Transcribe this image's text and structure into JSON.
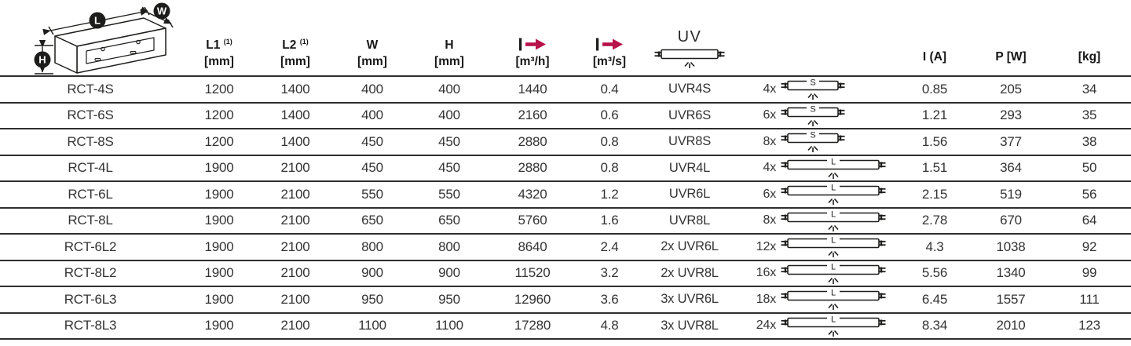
{
  "colors": {
    "accent_red": "#b8124a",
    "line": "#2e2e2e",
    "text": "#1d1d1b"
  },
  "header": {
    "diagram_labels": {
      "l": "L",
      "w": "W",
      "h": "H"
    },
    "columns": {
      "l1": {
        "name": "L1",
        "sup": "(1)",
        "unit": "[mm]"
      },
      "l2": {
        "name": "L2",
        "sup": "(1)",
        "unit": "[mm]"
      },
      "w": {
        "name": "W",
        "unit": "[mm]"
      },
      "h": {
        "name": "H",
        "unit": "[mm]"
      },
      "flow_h": {
        "unit": "[m³/h]"
      },
      "flow_s": {
        "unit": "[m³/s]"
      },
      "uv": {
        "name": "UV"
      },
      "current": {
        "name": "I (A]"
      },
      "power": {
        "name": "P [W]"
      },
      "weight": {
        "name": "[kg]"
      }
    }
  },
  "table": {
    "rows": [
      {
        "model": "RCT-4S",
        "l1": "1200",
        "l2": "1400",
        "w": "400",
        "h": "400",
        "m3h": "1440",
        "m3s": "0.4",
        "uv_model": "UVR4S",
        "lamp_count": "4x",
        "lamp_type": "S",
        "i": "0.85",
        "p": "205",
        "kg": "34"
      },
      {
        "model": "RCT-6S",
        "l1": "1200",
        "l2": "1400",
        "w": "400",
        "h": "400",
        "m3h": "2160",
        "m3s": "0.6",
        "uv_model": "UVR6S",
        "lamp_count": "6x",
        "lamp_type": "S",
        "i": "1.21",
        "p": "293",
        "kg": "35"
      },
      {
        "model": "RCT-8S",
        "l1": "1200",
        "l2": "1400",
        "w": "450",
        "h": "450",
        "m3h": "2880",
        "m3s": "0.8",
        "uv_model": "UVR8S",
        "lamp_count": "8x",
        "lamp_type": "S",
        "i": "1.56",
        "p": "377",
        "kg": "38"
      },
      {
        "model": "RCT-4L",
        "l1": "1900",
        "l2": "2100",
        "w": "450",
        "h": "450",
        "m3h": "2880",
        "m3s": "0.8",
        "uv_model": "UVR4L",
        "lamp_count": "4x",
        "lamp_type": "L",
        "i": "1.51",
        "p": "364",
        "kg": "50"
      },
      {
        "model": "RCT-6L",
        "l1": "1900",
        "l2": "2100",
        "w": "550",
        "h": "550",
        "m3h": "4320",
        "m3s": "1.2",
        "uv_model": "UVR6L",
        "lamp_count": "6x",
        "lamp_type": "L",
        "i": "2.15",
        "p": "519",
        "kg": "56"
      },
      {
        "model": "RCT-8L",
        "l1": "1900",
        "l2": "2100",
        "w": "650",
        "h": "650",
        "m3h": "5760",
        "m3s": "1.6",
        "uv_model": "UVR8L",
        "lamp_count": "8x",
        "lamp_type": "L",
        "i": "2.78",
        "p": "670",
        "kg": "64"
      },
      {
        "model": "RCT-6L2",
        "l1": "1900",
        "l2": "2100",
        "w": "800",
        "h": "800",
        "m3h": "8640",
        "m3s": "2.4",
        "uv_model": "2x UVR6L",
        "lamp_count": "12x",
        "lamp_type": "L",
        "i": "4.3",
        "p": "1038",
        "kg": "92"
      },
      {
        "model": "RCT-8L2",
        "l1": "1900",
        "l2": "2100",
        "w": "900",
        "h": "900",
        "m3h": "11520",
        "m3s": "3.2",
        "uv_model": "2x UVR8L",
        "lamp_count": "16x",
        "lamp_type": "L",
        "i": "5.56",
        "p": "1340",
        "kg": "99"
      },
      {
        "model": "RCT-6L3",
        "l1": "1900",
        "l2": "2100",
        "w": "950",
        "h": "950",
        "m3h": "12960",
        "m3s": "3.6",
        "uv_model": "3x UVR6L",
        "lamp_count": "18x",
        "lamp_type": "L",
        "i": "6.45",
        "p": "1557",
        "kg": "111"
      },
      {
        "model": "RCT-8L3",
        "l1": "1900",
        "l2": "2100",
        "w": "1100",
        "h": "1100",
        "m3h": "17280",
        "m3s": "4.8",
        "uv_model": "3x UVR8L",
        "lamp_count": "24x",
        "lamp_type": "L",
        "i": "8.34",
        "p": "2010",
        "kg": "123"
      }
    ]
  }
}
